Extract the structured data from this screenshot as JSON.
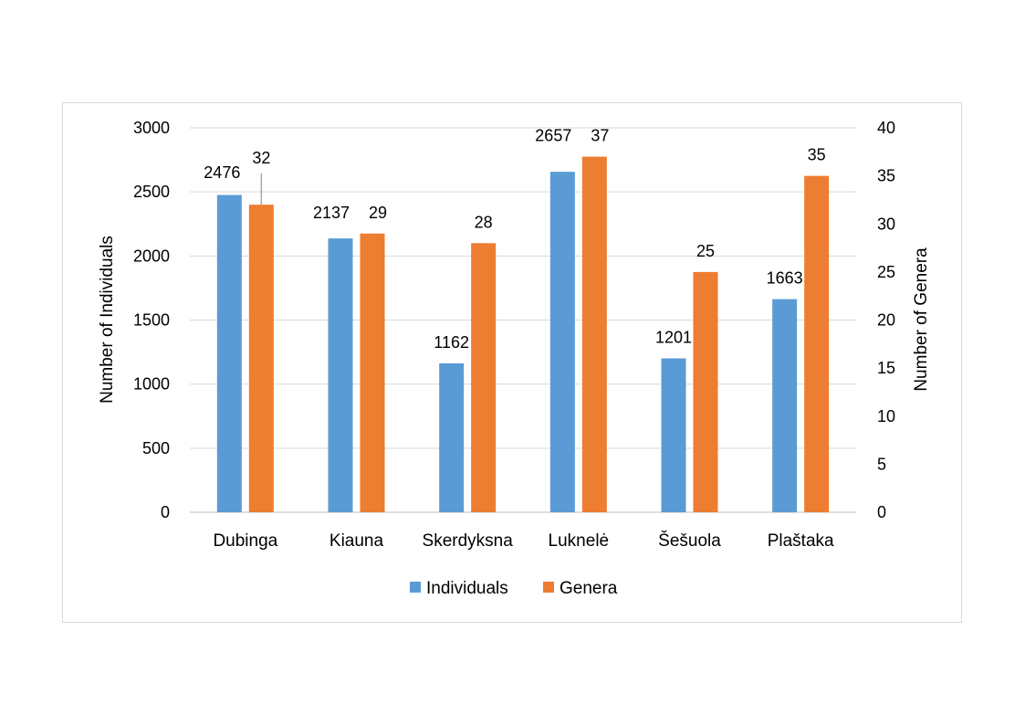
{
  "chart_data": {
    "type": "bar",
    "categories": [
      "Dubinga",
      "Kiauna",
      "Skerdyksna",
      "Luknelė",
      "Šešuola",
      "Plaštaka"
    ],
    "series": [
      {
        "name": "Individuals",
        "axis": "left",
        "color": "#5b9bd5",
        "values": [
          2476,
          2137,
          1162,
          2657,
          1201,
          1663
        ]
      },
      {
        "name": "Genera",
        "axis": "right",
        "color": "#ed7d31",
        "values": [
          32,
          29,
          28,
          37,
          25,
          35
        ]
      }
    ],
    "ylabel": "Number of Individuals",
    "y2label": "Number of Genera",
    "ylim": [
      0,
      3000
    ],
    "y2lim": [
      0,
      40
    ],
    "yticks": [
      0,
      500,
      1000,
      1500,
      2000,
      2500,
      3000
    ],
    "y2ticks": [
      0,
      5,
      10,
      15,
      20,
      25,
      30,
      35,
      40
    ],
    "grid": true,
    "legend_position": "bottom",
    "data_labels": true
  }
}
